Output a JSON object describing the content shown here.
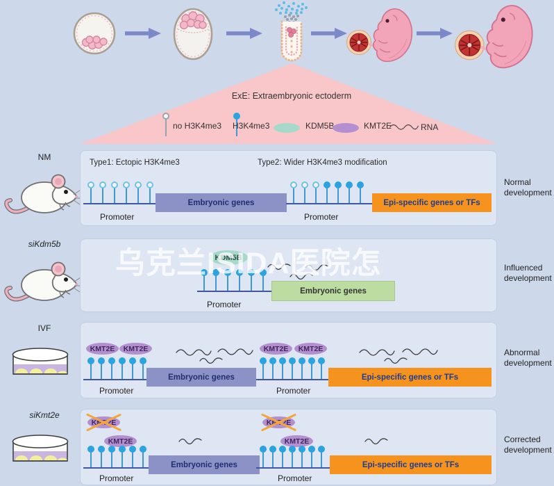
{
  "watermark": "乌克兰ISIDA医院怎",
  "colors": {
    "background": "#cdd8eb",
    "panel_bg": "#dee5f3",
    "triangle_pink": "#f9c6ca",
    "arrow_blue": "#7d88cb",
    "h3k4me3_blue": "#29a4e0",
    "kdm5b_teal": "#a7d9ca",
    "kmt2e_purple": "#b48fcf",
    "embryonic_box_purple": "#8d92c6",
    "epi_box_orange": "#f6921e",
    "embryonic_box_green": "#bddca1"
  },
  "legend": {
    "title": "ExE: Extraembryonic ectoderm",
    "items": [
      {
        "label": "no H3K4me3"
      },
      {
        "label": "H3K4me3"
      },
      {
        "label": "KDM5B"
      },
      {
        "label": "KMT2E"
      },
      {
        "label": "RNA"
      }
    ]
  },
  "rows": [
    {
      "condition": "NM",
      "outcome": "Normal development"
    },
    {
      "condition": "siKdm5b",
      "outcome": "Influenced development"
    },
    {
      "condition": "IVF",
      "outcome": "Abnormal development"
    },
    {
      "condition": "siKmt2e",
      "outcome": "Corrected development"
    }
  ],
  "panels": [
    {
      "type1_label": "Type1: Ectopic H3K4me3",
      "type2_label": "Type2: Wider H3K4me3 modification",
      "halves": [
        {
          "promoter_label": "Promoter",
          "gene_label": "Embryonic genes",
          "lollipops": [
            "open",
            "open",
            "open",
            "open",
            "open",
            "open"
          ]
        },
        {
          "promoter_label": "Promoter",
          "gene_label": "Epi-specific genes or TFs",
          "lollipops": [
            "open",
            "open",
            "open",
            "filled",
            "filled",
            "filled",
            "filled"
          ]
        }
      ]
    },
    {
      "enzyme_label": "KDM5B",
      "halves": [
        {
          "promoter_label": "Promoter",
          "gene_label": "Embryonic genes",
          "lollipops": [
            "filled",
            "filled",
            "filled",
            "filled",
            "filled",
            "filled"
          ]
        }
      ]
    },
    {
      "halves": [
        {
          "enzymes": [
            "KMT2E",
            "KMT2E"
          ],
          "promoter_label": "Promoter",
          "gene_label": "Embryonic genes",
          "lollipops": [
            "filled",
            "filled",
            "filled",
            "filled",
            "filled",
            "filled"
          ]
        },
        {
          "enzymes": [
            "KMT2E",
            "KMT2E"
          ],
          "promoter_label": "Promoter",
          "gene_label": "Epi-specific genes or TFs",
          "lollipops": [
            "filled",
            "filled",
            "filled",
            "filled",
            "filled",
            "filled",
            "filled"
          ]
        }
      ]
    },
    {
      "halves": [
        {
          "enzyme_crossed": "KMT2E",
          "enzyme": "KMT2E",
          "promoter_label": "Promoter",
          "gene_label": "Embryonic genes",
          "lollipops": [
            "filled",
            "filled",
            "filled",
            "filled",
            "filled",
            "filled"
          ]
        },
        {
          "enzyme_crossed": "KMT2E",
          "enzyme": "KMT2E",
          "promoter_label": "Promoter",
          "gene_label": "Epi-specific genes or TFs",
          "lollipops": [
            "filled",
            "filled",
            "filled",
            "filled",
            "filled",
            "filled",
            "filled"
          ]
        }
      ]
    }
  ]
}
